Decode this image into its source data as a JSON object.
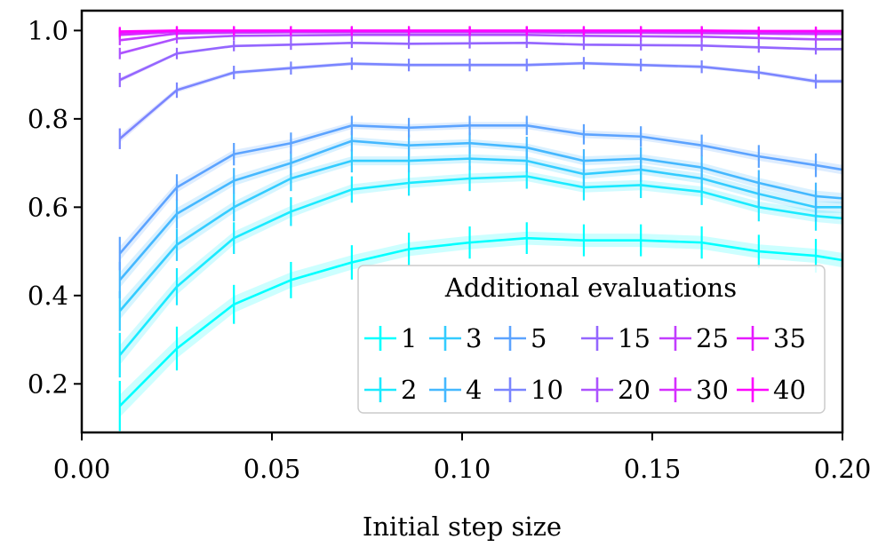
{
  "chart_data": {
    "type": "line",
    "title": "",
    "xlabel": "Initial step size",
    "ylabel": "",
    "xlim": [
      0.0,
      0.2
    ],
    "ylim": [
      0.09,
      1.045
    ],
    "grid": false,
    "x_ticks": [
      0.0,
      0.05,
      0.1,
      0.15,
      0.2
    ],
    "x_tick_labels": [
      "0.00",
      "0.05",
      "0.10",
      "0.15",
      "0.20"
    ],
    "y_ticks": [
      0.2,
      0.4,
      0.6,
      0.8,
      1.0
    ],
    "y_tick_labels": [
      "0.2",
      "0.4",
      "0.6",
      "0.8",
      "1.0"
    ],
    "x": [
      0.01,
      0.025,
      0.04,
      0.055,
      0.071,
      0.086,
      0.102,
      0.117,
      0.132,
      0.147,
      0.163,
      0.178,
      0.193,
      0.2
    ],
    "legend": {
      "title": "Additional evaluations",
      "position": "lower right",
      "ncol": 6
    },
    "series": [
      {
        "name": "1",
        "color": "#00ffff",
        "values": [
          0.15,
          0.28,
          0.38,
          0.435,
          0.475,
          0.505,
          0.52,
          0.53,
          0.525,
          0.525,
          0.52,
          0.5,
          0.49,
          0.48
        ]
      },
      {
        "name": "2",
        "color": "#1aeaff",
        "values": [
          0.265,
          0.42,
          0.53,
          0.59,
          0.64,
          0.655,
          0.665,
          0.67,
          0.645,
          0.65,
          0.635,
          0.6,
          0.58,
          0.575
        ]
      },
      {
        "name": "3",
        "color": "#33ccff",
        "values": [
          0.365,
          0.515,
          0.6,
          0.665,
          0.705,
          0.705,
          0.71,
          0.705,
          0.675,
          0.685,
          0.665,
          0.63,
          0.6,
          0.6
        ]
      },
      {
        "name": "4",
        "color": "#45b8ff",
        "values": [
          0.435,
          0.585,
          0.66,
          0.7,
          0.75,
          0.74,
          0.745,
          0.735,
          0.705,
          0.71,
          0.69,
          0.655,
          0.625,
          0.62
        ]
      },
      {
        "name": "5",
        "color": "#5ca3ff",
        "values": [
          0.495,
          0.645,
          0.72,
          0.745,
          0.785,
          0.78,
          0.785,
          0.785,
          0.765,
          0.76,
          0.74,
          0.715,
          0.695,
          0.685
        ]
      },
      {
        "name": "10",
        "color": "#7a85ff",
        "values": [
          0.755,
          0.865,
          0.905,
          0.915,
          0.925,
          0.922,
          0.922,
          0.922,
          0.926,
          0.922,
          0.918,
          0.905,
          0.885,
          0.885
        ]
      },
      {
        "name": "15",
        "color": "#9466ff",
        "values": [
          0.888,
          0.948,
          0.965,
          0.968,
          0.972,
          0.97,
          0.971,
          0.972,
          0.968,
          0.967,
          0.966,
          0.962,
          0.958,
          0.958
        ]
      },
      {
        "name": "20",
        "color": "#ad52ff",
        "values": [
          0.948,
          0.982,
          0.988,
          0.989,
          0.99,
          0.99,
          0.99,
          0.99,
          0.988,
          0.987,
          0.986,
          0.983,
          0.98,
          0.98
        ]
      },
      {
        "name": "25",
        "color": "#c23dff",
        "values": [
          0.978,
          0.993,
          0.995,
          0.996,
          0.996,
          0.996,
          0.996,
          0.996,
          0.995,
          0.995,
          0.994,
          0.993,
          0.992,
          0.992
        ]
      },
      {
        "name": "30",
        "color": "#d62eff",
        "values": [
          0.99,
          0.997,
          0.998,
          0.998,
          0.998,
          0.998,
          0.998,
          0.998,
          0.998,
          0.998,
          0.997,
          0.997,
          0.996,
          0.996
        ]
      },
      {
        "name": "35",
        "color": "#e61aff",
        "values": [
          0.995,
          0.999,
          0.999,
          0.999,
          0.999,
          0.999,
          0.999,
          0.999,
          0.999,
          0.999,
          0.999,
          0.998,
          0.998,
          0.998
        ]
      },
      {
        "name": "40",
        "color": "#ff00ff",
        "values": [
          0.998,
          1.0,
          1.0,
          1.0,
          1.0,
          1.0,
          1.0,
          1.0,
          1.0,
          1.0,
          1.0,
          0.999,
          0.999,
          0.999
        ]
      }
    ]
  }
}
